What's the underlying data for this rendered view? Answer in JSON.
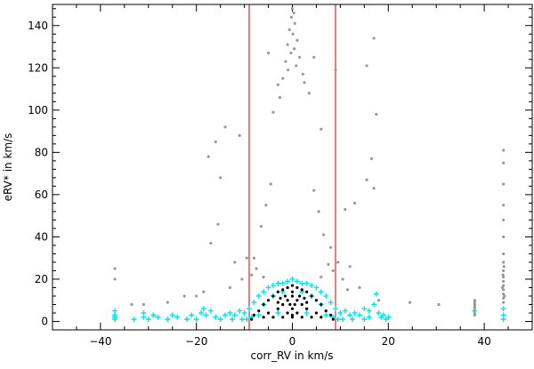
{
  "chart_data": {
    "type": "scatter",
    "title": "",
    "xlabel": "corr_RV in km/s",
    "ylabel": "eRV* in km/s",
    "xlim": [
      -50,
      50
    ],
    "ylim": [
      -4,
      150
    ],
    "xticks": [
      -40,
      -20,
      0,
      20,
      40
    ],
    "yticks": [
      0,
      20,
      40,
      60,
      80,
      100,
      120,
      140
    ],
    "xtick_labels": [
      "−40",
      "−20",
      "0",
      "20",
      "40"
    ],
    "ytick_labels": [
      "0",
      "20",
      "40",
      "60",
      "80",
      "100",
      "120",
      "140"
    ],
    "grid": false,
    "vlines": [
      {
        "x": -9,
        "color": "#cc0000"
      },
      {
        "x": 9,
        "color": "#cc0000"
      }
    ],
    "series": [
      {
        "color": "#999999",
        "marker": "dot",
        "points": [
          [
            0,
            148
          ],
          [
            0.3,
            146
          ],
          [
            -0.2,
            144
          ],
          [
            0.5,
            141
          ],
          [
            -0.6,
            138
          ],
          [
            0.1,
            136
          ],
          [
            1,
            133
          ],
          [
            -1,
            131
          ],
          [
            0.4,
            129
          ],
          [
            -0.3,
            127
          ],
          [
            1.5,
            125
          ],
          [
            -1.4,
            123
          ],
          [
            0.8,
            121
          ],
          [
            -0.9,
            119
          ],
          [
            2.2,
            117
          ],
          [
            -2,
            115
          ],
          [
            -5,
            127
          ],
          [
            4.5,
            125
          ],
          [
            9,
            119
          ],
          [
            -14,
            92
          ],
          [
            -11,
            88
          ],
          [
            -16,
            85
          ],
          [
            -17.5,
            78
          ],
          [
            -15,
            68
          ],
          [
            -15.5,
            46
          ],
          [
            -17,
            37
          ],
          [
            17,
            134
          ],
          [
            15.5,
            121
          ],
          [
            17.5,
            98
          ],
          [
            16.5,
            77
          ],
          [
            15.5,
            67
          ],
          [
            17,
            63
          ],
          [
            13,
            56
          ],
          [
            11,
            53
          ],
          [
            6,
            91
          ],
          [
            -4,
            99
          ],
          [
            3.5,
            108
          ],
          [
            -3,
            112
          ],
          [
            2.5,
            113
          ],
          [
            -2.6,
            106
          ],
          [
            -37,
            25
          ],
          [
            -37,
            20
          ],
          [
            -33.5,
            8
          ],
          [
            -31,
            8
          ],
          [
            -26,
            9
          ],
          [
            -22.5,
            12
          ],
          [
            -20,
            12
          ],
          [
            -18.5,
            14
          ],
          [
            -13,
            16
          ],
          [
            11.5,
            15
          ],
          [
            14,
            16
          ],
          [
            18,
            10
          ],
          [
            24.5,
            9
          ],
          [
            30.5,
            8
          ],
          [
            38,
            10
          ],
          [
            38,
            9
          ],
          [
            38,
            8
          ],
          [
            38,
            7
          ],
          [
            38,
            6
          ],
          [
            38,
            5
          ],
          [
            38,
            4
          ],
          [
            38,
            3
          ],
          [
            44,
            81
          ],
          [
            44,
            75
          ],
          [
            44,
            65
          ],
          [
            44,
            55
          ],
          [
            44,
            48
          ],
          [
            44,
            40
          ],
          [
            44,
            32
          ],
          [
            44,
            28
          ],
          [
            44,
            24
          ],
          [
            44,
            21
          ],
          [
            44,
            19
          ],
          [
            44,
            17
          ],
          [
            44,
            15
          ],
          [
            44,
            13
          ],
          [
            44,
            11
          ],
          [
            44,
            9
          ],
          [
            43.8,
            16
          ],
          [
            44.2,
            12
          ],
          [
            43.9,
            22
          ],
          [
            44.1,
            26
          ],
          [
            -8,
            30
          ],
          [
            8,
            35
          ],
          [
            -6.5,
            45
          ],
          [
            6.5,
            41
          ],
          [
            -7.5,
            25
          ],
          [
            7.5,
            27
          ],
          [
            -5.5,
            55
          ],
          [
            5.5,
            52
          ],
          [
            -8.5,
            22
          ],
          [
            8.5,
            24
          ],
          [
            -4.5,
            65
          ],
          [
            4.5,
            62
          ],
          [
            -9.5,
            30
          ],
          [
            9.5,
            28
          ],
          [
            -10.5,
            20
          ],
          [
            10.5,
            20
          ],
          [
            -12,
            28
          ],
          [
            12,
            26
          ],
          [
            -6,
            21
          ],
          [
            6,
            21
          ]
        ]
      },
      {
        "color": "#00e5ee",
        "marker": "plus",
        "points": [
          [
            -37,
            5
          ],
          [
            -37,
            3
          ],
          [
            -37,
            1
          ],
          [
            -31,
            4
          ],
          [
            -31,
            2
          ],
          [
            -30,
            1
          ],
          [
            -28,
            2
          ],
          [
            -25,
            3
          ],
          [
            -21,
            3
          ],
          [
            -19,
            4
          ],
          [
            -18.5,
            6
          ],
          [
            -18,
            3
          ],
          [
            -17,
            5
          ],
          [
            -16,
            2
          ],
          [
            -14,
            3
          ],
          [
            -13,
            4
          ],
          [
            -12,
            3
          ],
          [
            -11,
            5
          ],
          [
            -10,
            4
          ],
          [
            -9,
            6
          ],
          [
            -8,
            9
          ],
          [
            -7,
            12
          ],
          [
            -6,
            14
          ],
          [
            -5,
            16
          ],
          [
            -4,
            17
          ],
          [
            -3,
            18
          ],
          [
            -2,
            18
          ],
          [
            -1,
            19
          ],
          [
            0,
            20
          ],
          [
            1,
            19
          ],
          [
            2,
            18
          ],
          [
            3,
            18
          ],
          [
            4,
            17
          ],
          [
            5,
            16
          ],
          [
            6,
            14
          ],
          [
            7,
            12
          ],
          [
            8,
            9
          ],
          [
            9,
            6
          ],
          [
            10,
            4
          ],
          [
            11,
            5
          ],
          [
            12,
            3
          ],
          [
            13,
            4
          ],
          [
            14,
            3
          ],
          [
            15,
            6
          ],
          [
            16,
            5
          ],
          [
            17,
            8
          ],
          [
            17.5,
            13
          ],
          [
            18,
            4
          ],
          [
            19,
            3
          ],
          [
            20,
            2
          ],
          [
            -8.5,
            2
          ],
          [
            8.5,
            2
          ],
          [
            -7,
            3
          ],
          [
            7,
            3
          ],
          [
            -9.5,
            1
          ],
          [
            9.5,
            1
          ],
          [
            -3,
            4
          ],
          [
            3,
            4
          ],
          [
            -6,
            8
          ],
          [
            6,
            8
          ],
          [
            -4,
            12
          ],
          [
            4,
            12
          ],
          [
            -2,
            14
          ],
          [
            2,
            14
          ],
          [
            -10.5,
            1
          ],
          [
            10.5,
            1
          ],
          [
            -12.5,
            1
          ],
          [
            12.5,
            1
          ],
          [
            -15,
            1
          ],
          [
            15,
            1
          ],
          [
            -22,
            1
          ],
          [
            -26,
            1
          ],
          [
            38,
            5
          ],
          [
            44,
            6
          ],
          [
            44,
            3
          ],
          [
            44,
            1
          ],
          [
            -37,
            2
          ],
          [
            -33,
            1
          ],
          [
            -29,
            3
          ],
          [
            -24,
            2
          ],
          [
            -20,
            1
          ],
          [
            16,
            2
          ],
          [
            18.5,
            2
          ],
          [
            19.5,
            1
          ]
        ]
      },
      {
        "color": "#000000",
        "marker": "dot",
        "points": [
          [
            0,
            17
          ],
          [
            -1,
            16
          ],
          [
            1,
            16
          ],
          [
            -2,
            15
          ],
          [
            2,
            15
          ],
          [
            -3,
            14
          ],
          [
            3,
            14
          ],
          [
            -4,
            12
          ],
          [
            4,
            12
          ],
          [
            -5,
            10
          ],
          [
            5,
            10
          ],
          [
            -6,
            8
          ],
          [
            6,
            8
          ],
          [
            -7,
            5
          ],
          [
            7,
            5
          ],
          [
            -8,
            3
          ],
          [
            8,
            3
          ],
          [
            -8.5,
            1
          ],
          [
            8.5,
            1
          ],
          [
            0,
            12
          ],
          [
            -1,
            10
          ],
          [
            1,
            10
          ],
          [
            -2,
            8
          ],
          [
            2,
            8
          ],
          [
            -3,
            6
          ],
          [
            3,
            6
          ],
          [
            0,
            6
          ],
          [
            -1,
            4
          ],
          [
            1,
            4
          ],
          [
            0,
            2
          ],
          [
            -4,
            2
          ],
          [
            4,
            2
          ],
          [
            -6,
            2
          ],
          [
            6,
            2
          ],
          [
            -2,
            2
          ],
          [
            2,
            2
          ],
          [
            -5,
            4
          ],
          [
            5,
            4
          ],
          [
            -3,
            9
          ],
          [
            3,
            9
          ],
          [
            0,
            14
          ],
          [
            -0.5,
            8
          ],
          [
            0.5,
            8
          ],
          [
            -1.5,
            12
          ],
          [
            1.5,
            12
          ],
          [
            -2.5,
            11
          ],
          [
            2.5,
            11
          ],
          [
            0,
            3
          ]
        ]
      }
    ]
  }
}
